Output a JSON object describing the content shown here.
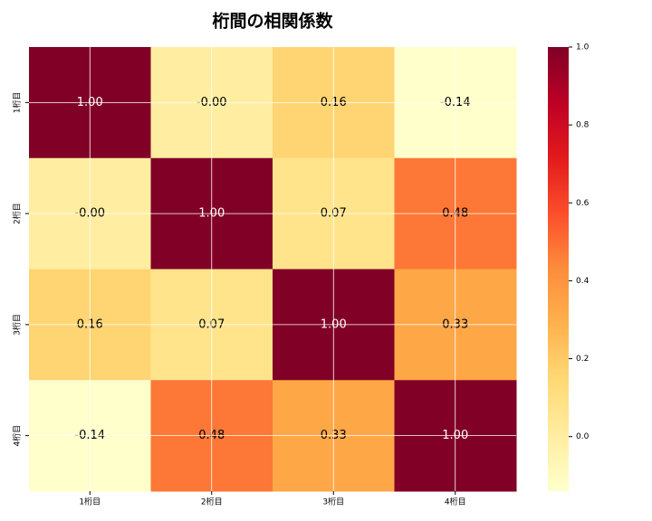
{
  "chart_data": {
    "type": "heatmap",
    "title": "桁間の相関係数",
    "x_categories": [
      "1桁目",
      "2桁目",
      "3桁目",
      "4桁目"
    ],
    "y_categories": [
      "1桁目",
      "2桁目",
      "3桁目",
      "4桁目"
    ],
    "values": [
      [
        1,
        -0.001,
        0.16,
        -0.14
      ],
      [
        -0.001,
        1,
        0.07,
        0.48
      ],
      [
        0.16,
        0.07,
        1,
        0.33
      ],
      [
        -0.14,
        0.48,
        0.33,
        1
      ]
    ],
    "value_labels": [
      [
        "1.00",
        "-0.00",
        "0.16",
        "-0.14"
      ],
      [
        "-0.00",
        "1.00",
        "0.07",
        "0.48"
      ],
      [
        "0.16",
        "0.07",
        "1.00",
        "0.33"
      ],
      [
        "-0.14",
        "0.48",
        "0.33",
        "1.00"
      ]
    ],
    "colormap": [
      "#ffffcc",
      "#ffeda0",
      "#fed976",
      "#feb24c",
      "#fd8d3c",
      "#fc4e2a",
      "#e31a1c",
      "#bd0026",
      "#800026"
    ],
    "zlim": [
      -0.14,
      1
    ],
    "zticks": [
      {
        "value": 0,
        "label": "0.0"
      },
      0.2,
      0.4,
      0.6,
      0.8,
      {
        "value": 1,
        "label": "1.0"
      }
    ],
    "grid": true
  }
}
